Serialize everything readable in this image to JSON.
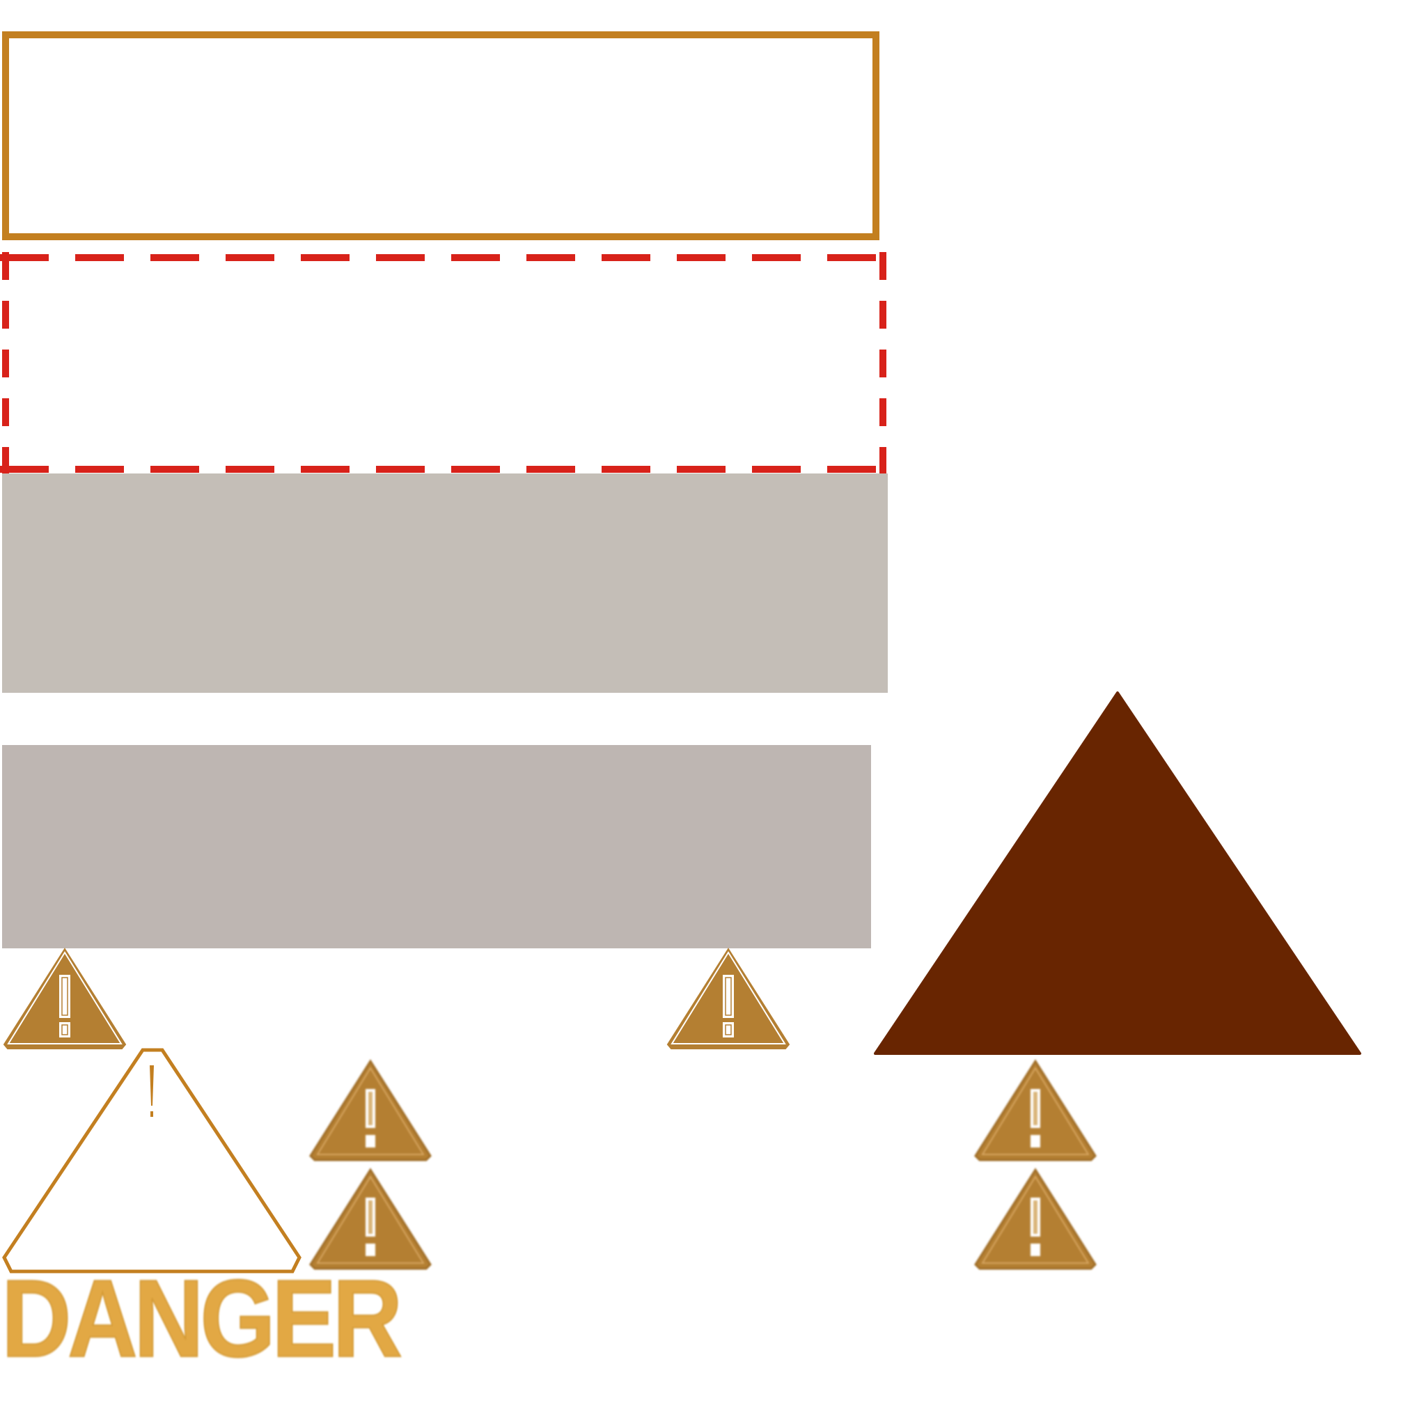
{
  "danger_label": "DANGER",
  "colors": {
    "frame_orange": "#c37f20",
    "dash_red": "#d8221a",
    "panel_light": "#c4beb7",
    "panel_dark": "#beb6b2",
    "triangle_brown": "#682501",
    "warning_fill": "#b47f32",
    "danger_text": "#e2a844"
  },
  "icons": [
    "warning-triangle-icon",
    "exclamation-icon"
  ]
}
